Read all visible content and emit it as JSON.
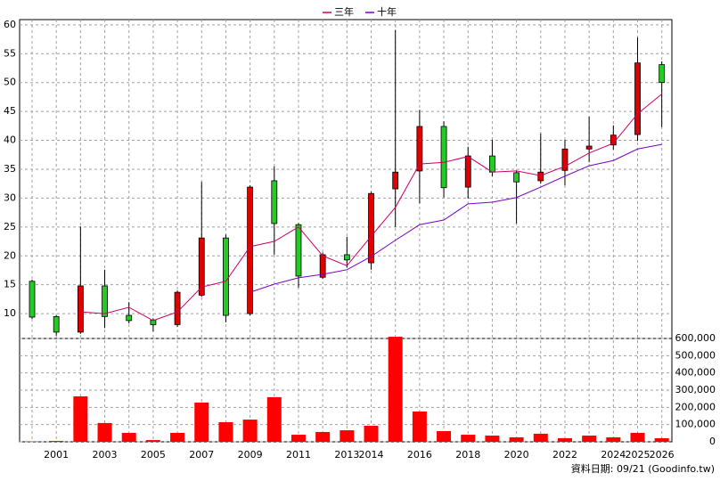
{
  "chart_data": [
    {
      "type": "candlestick",
      "categories": [
        null,
        "2001",
        null,
        "2003",
        null,
        "2005",
        null,
        "2007",
        null,
        "2009",
        null,
        "2011",
        null,
        "2013",
        "2014",
        null,
        "2016",
        null,
        "2018",
        null,
        "2020",
        null,
        "2022",
        null,
        "2024",
        "2025",
        "2026"
      ],
      "open": [
        15.6,
        9.5,
        6.8,
        14.8,
        9.7,
        8.9,
        8.1,
        13.2,
        23.1,
        10.0,
        33.0,
        25.4,
        16.3,
        20.2,
        18.8,
        31.6,
        34.7,
        42.4,
        31.9,
        37.3,
        34.4,
        33.0,
        34.8,
        38.5,
        39.2,
        41.0,
        53.1
      ],
      "high": [
        15.9,
        9.7,
        25.1,
        17.6,
        12.0,
        9.2,
        14.0,
        32.8,
        23.7,
        32.2,
        35.5,
        25.7,
        20.6,
        23.3,
        31.1,
        59.1,
        45.3,
        43.3,
        38.9,
        40.1,
        34.7,
        41.2,
        40.1,
        44.1,
        42.6,
        57.8,
        53.7
      ],
      "low": [
        9.1,
        6.2,
        6.5,
        7.5,
        8.3,
        6.9,
        7.7,
        12.9,
        8.5,
        9.7,
        20.2,
        14.5,
        16.0,
        18.0,
        17.6,
        25.0,
        29.1,
        30.1,
        29.9,
        33.8,
        25.6,
        32.5,
        32.2,
        36.2,
        38.4,
        39.9,
        42.3
      ],
      "close": [
        9.4,
        6.8,
        14.8,
        9.5,
        8.8,
        8.1,
        13.7,
        23.1,
        9.7,
        31.9,
        25.6,
        16.5,
        20.2,
        19.3,
        30.8,
        34.5,
        42.4,
        31.8,
        37.3,
        34.5,
        32.8,
        34.5,
        38.5,
        39.0,
        40.9,
        53.4,
        50.0
      ],
      "up_color": "#e00000",
      "down_color": "#22cc22",
      "series": [
        {
          "name": "三年",
          "color": "#cc0066",
          "values": [
            null,
            null,
            10.3,
            10.0,
            11.1,
            8.8,
            10.3,
            14.6,
            15.6,
            21.6,
            22.5,
            25.0,
            20.0,
            18.3,
            23.4,
            28.4,
            35.9,
            36.2,
            37.2,
            34.5,
            34.7,
            33.9,
            35.5,
            37.8,
            39.5,
            44.6,
            48.0
          ]
        },
        {
          "name": "十年",
          "color": "#7700cc",
          "values": [
            null,
            null,
            null,
            null,
            null,
            null,
            null,
            null,
            null,
            13.7,
            15.1,
            16.2,
            16.8,
            17.6,
            19.9,
            22.7,
            25.4,
            26.2,
            29.0,
            29.3,
            30.1,
            31.9,
            33.8,
            35.6,
            36.5,
            38.5,
            39.3
          ]
        }
      ],
      "ylim": [
        5.7,
        60.9
      ],
      "yticks": [
        10,
        15,
        20,
        25,
        30,
        35,
        40,
        45,
        50,
        55,
        60
      ],
      "grid": true,
      "legend": "top"
    },
    {
      "type": "bar",
      "values": [
        2000,
        5000,
        264000,
        109000,
        52000,
        10000,
        52000,
        228000,
        114000,
        129000,
        259000,
        41000,
        57000,
        67000,
        93000,
        610000,
        176000,
        62000,
        41000,
        36000,
        26000,
        47000,
        21000,
        36000,
        26000,
        52000,
        21000
      ],
      "color": "#ff0000",
      "ylim": [
        0,
        600000
      ],
      "yticks": [
        0,
        {
          "value": 100000,
          "label": "100,000"
        },
        {
          "value": 200000,
          "label": "200,000"
        },
        {
          "value": 300000,
          "label": "300,000"
        },
        {
          "value": 400000,
          "label": "400,000"
        },
        {
          "value": 500000,
          "label": "500,000"
        },
        {
          "value": 600000,
          "label": "600,000"
        }
      ],
      "grid": true,
      "note": "資料日期: 09/21 (Goodinfo.tw)"
    }
  ]
}
